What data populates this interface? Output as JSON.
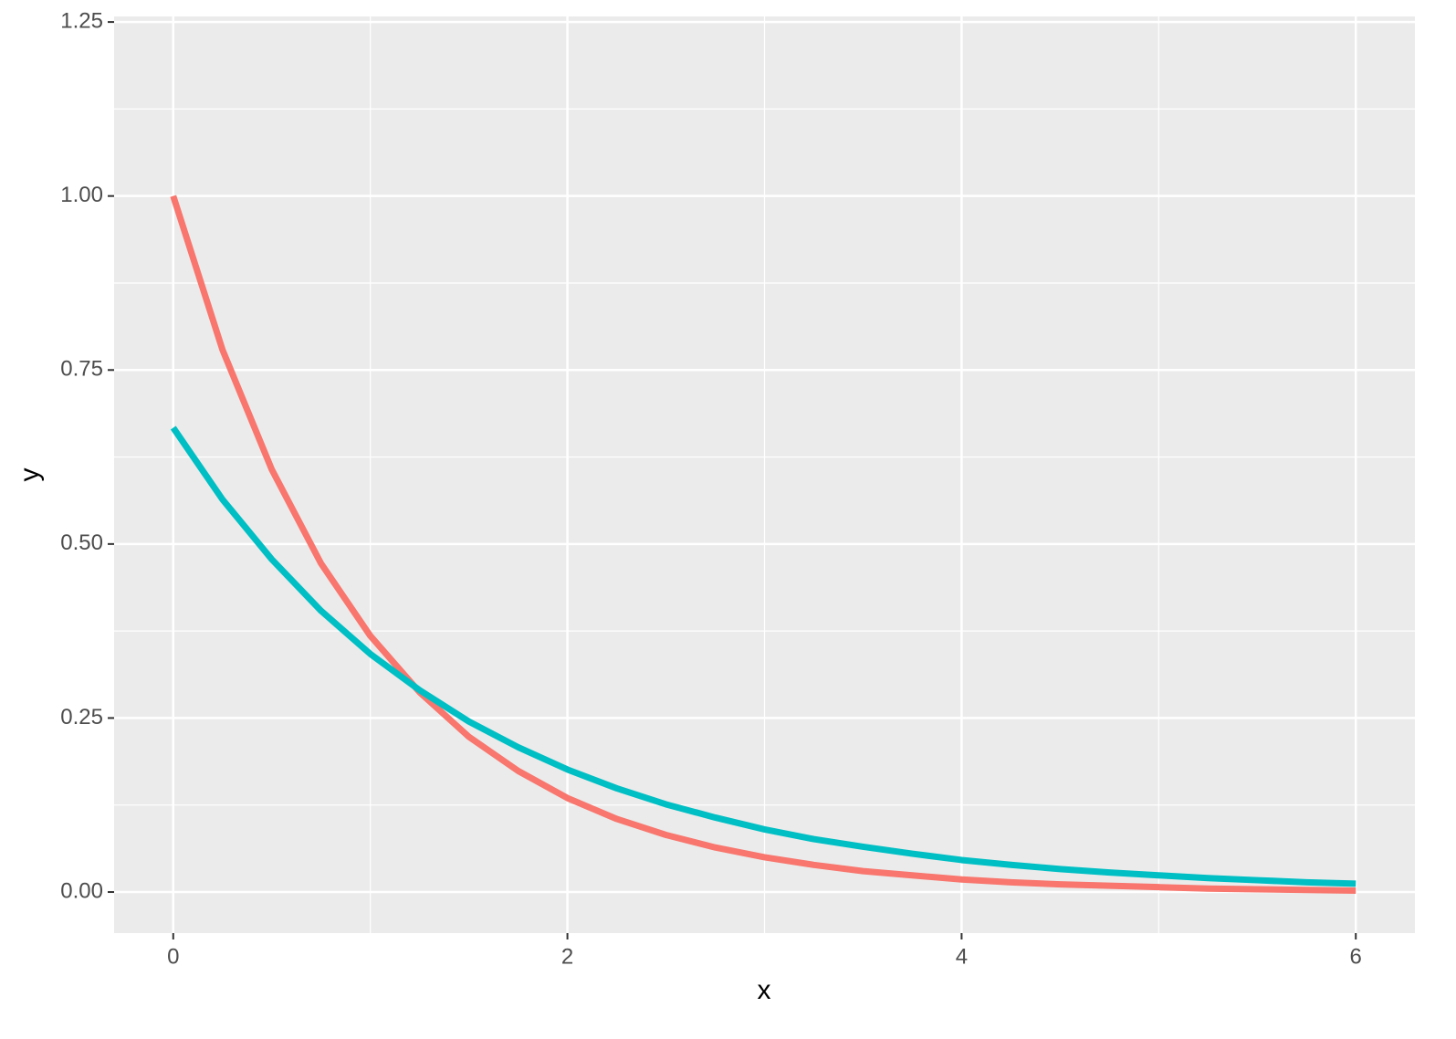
{
  "chart_data": {
    "type": "line",
    "x_label": "x",
    "y_label": "y",
    "x": [
      0,
      0.25,
      0.5,
      0.75,
      1,
      1.25,
      1.5,
      1.75,
      2,
      2.25,
      2.5,
      2.75,
      3,
      3.25,
      3.5,
      3.75,
      4,
      4.25,
      4.5,
      4.75,
      5,
      5.25,
      5.5,
      5.75,
      6
    ],
    "series": [
      {
        "color": "#F8766D",
        "values": [
          1,
          0.779,
          0.607,
          0.472,
          0.368,
          0.287,
          0.223,
          0.174,
          0.135,
          0.105,
          0.082,
          0.064,
          0.05,
          0.039,
          0.03,
          0.024,
          0.018,
          0.014,
          0.011,
          0.009,
          0.007,
          0.005,
          0.004,
          0.003,
          0.002
        ]
      },
      {
        "color": "#00BFC4",
        "values": [
          0.667,
          0.564,
          0.478,
          0.404,
          0.342,
          0.29,
          0.245,
          0.208,
          0.176,
          0.149,
          0.126,
          0.107,
          0.09,
          0.076,
          0.065,
          0.055,
          0.046,
          0.039,
          0.033,
          0.028,
          0.024,
          0.02,
          0.017,
          0.014,
          0.012
        ]
      }
    ],
    "xlim": [
      -0.3,
      6.3
    ],
    "xticks": [
      0,
      2,
      4,
      6
    ],
    "minor_xticks": [
      1,
      3,
      5
    ],
    "ylim": [
      -0.059,
      1.258
    ],
    "yticks": [
      {
        "value": 0,
        "label": "0.00"
      },
      {
        "value": 0.25,
        "label": "0.25"
      },
      {
        "value": 0.5,
        "label": "0.50"
      },
      {
        "value": 0.75,
        "label": "0.75"
      },
      {
        "value": 1,
        "label": "1.00"
      },
      {
        "value": 1.25,
        "label": "1.25"
      }
    ],
    "minor_yticks": [
      0.125,
      0.375,
      0.625,
      0.875,
      1.125
    ],
    "grid": true
  }
}
